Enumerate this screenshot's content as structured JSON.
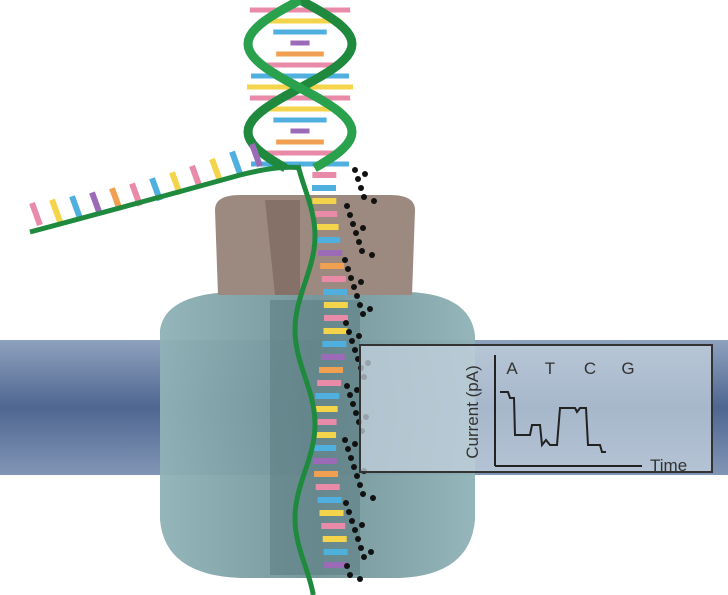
{
  "plot": {
    "bases": [
      "A",
      "T",
      "C",
      "G"
    ],
    "ylabel": "Current (pA)",
    "xlabel": "Time"
  }
}
